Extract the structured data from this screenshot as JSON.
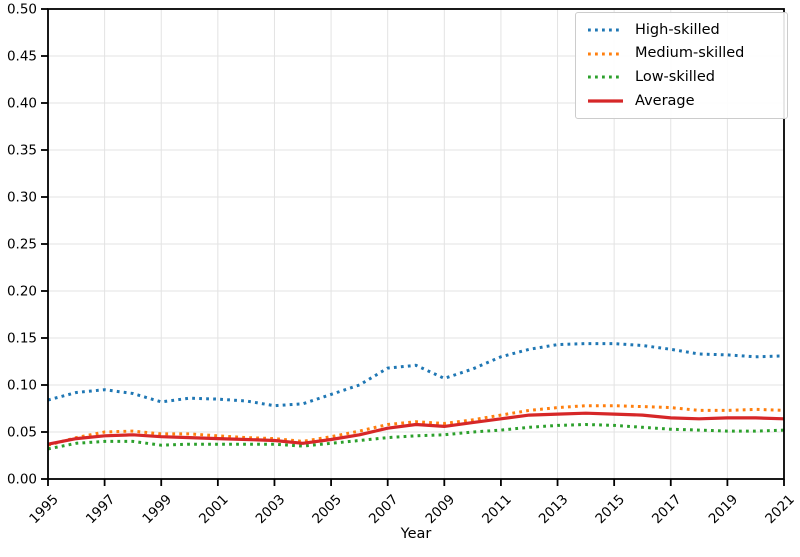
{
  "chart_data": {
    "type": "line",
    "title": "",
    "xlabel": "Year",
    "ylabel": "",
    "xlim": [
      1995,
      2021
    ],
    "ylim": [
      0.0,
      0.5
    ],
    "grid": true,
    "grid_color": "#e3e3e3",
    "axis_color": "#000000",
    "legend_position": "upper right",
    "xticks": [
      "1995",
      "1997",
      "1999",
      "2001",
      "2003",
      "2005",
      "2007",
      "2009",
      "2011",
      "2013",
      "2015",
      "2017",
      "2019",
      "2021"
    ],
    "yticks": [
      "0.00",
      "0.05",
      "0.10",
      "0.15",
      "0.20",
      "0.25",
      "0.30",
      "0.35",
      "0.40",
      "0.45",
      "0.50"
    ],
    "x": [
      1995,
      1996,
      1997,
      1998,
      1999,
      2000,
      2001,
      2002,
      2003,
      2004,
      2005,
      2006,
      2007,
      2008,
      2009,
      2010,
      2011,
      2012,
      2013,
      2014,
      2015,
      2016,
      2017,
      2018,
      2019,
      2020,
      2021
    ],
    "series": [
      {
        "name": "High-skilled",
        "color": "#1f77b4",
        "style": "dotted",
        "values": [
          0.084,
          0.092,
          0.095,
          0.091,
          0.082,
          0.086,
          0.085,
          0.083,
          0.078,
          0.08,
          0.09,
          0.1,
          0.118,
          0.121,
          0.107,
          0.117,
          0.13,
          0.138,
          0.143,
          0.144,
          0.144,
          0.142,
          0.138,
          0.133,
          0.132,
          0.13,
          0.131
        ]
      },
      {
        "name": "Medium-skilled",
        "color": "#ff7f0e",
        "style": "dotted",
        "values": [
          0.036,
          0.044,
          0.05,
          0.051,
          0.048,
          0.048,
          0.046,
          0.044,
          0.043,
          0.04,
          0.045,
          0.051,
          0.058,
          0.061,
          0.059,
          0.063,
          0.068,
          0.073,
          0.076,
          0.078,
          0.078,
          0.077,
          0.076,
          0.073,
          0.073,
          0.074,
          0.073
        ]
      },
      {
        "name": "Low-skilled",
        "color": "#2ca02c",
        "style": "dotted",
        "values": [
          0.032,
          0.038,
          0.04,
          0.04,
          0.036,
          0.037,
          0.037,
          0.037,
          0.037,
          0.035,
          0.038,
          0.041,
          0.044,
          0.046,
          0.047,
          0.05,
          0.052,
          0.055,
          0.057,
          0.058,
          0.057,
          0.055,
          0.053,
          0.052,
          0.051,
          0.051,
          0.052
        ]
      },
      {
        "name": "Average",
        "color": "#d62728",
        "style": "solid",
        "values": [
          0.037,
          0.043,
          0.046,
          0.047,
          0.045,
          0.044,
          0.043,
          0.042,
          0.041,
          0.038,
          0.042,
          0.047,
          0.054,
          0.058,
          0.056,
          0.06,
          0.064,
          0.068,
          0.069,
          0.07,
          0.069,
          0.068,
          0.065,
          0.064,
          0.065,
          0.065,
          0.064
        ]
      }
    ]
  }
}
